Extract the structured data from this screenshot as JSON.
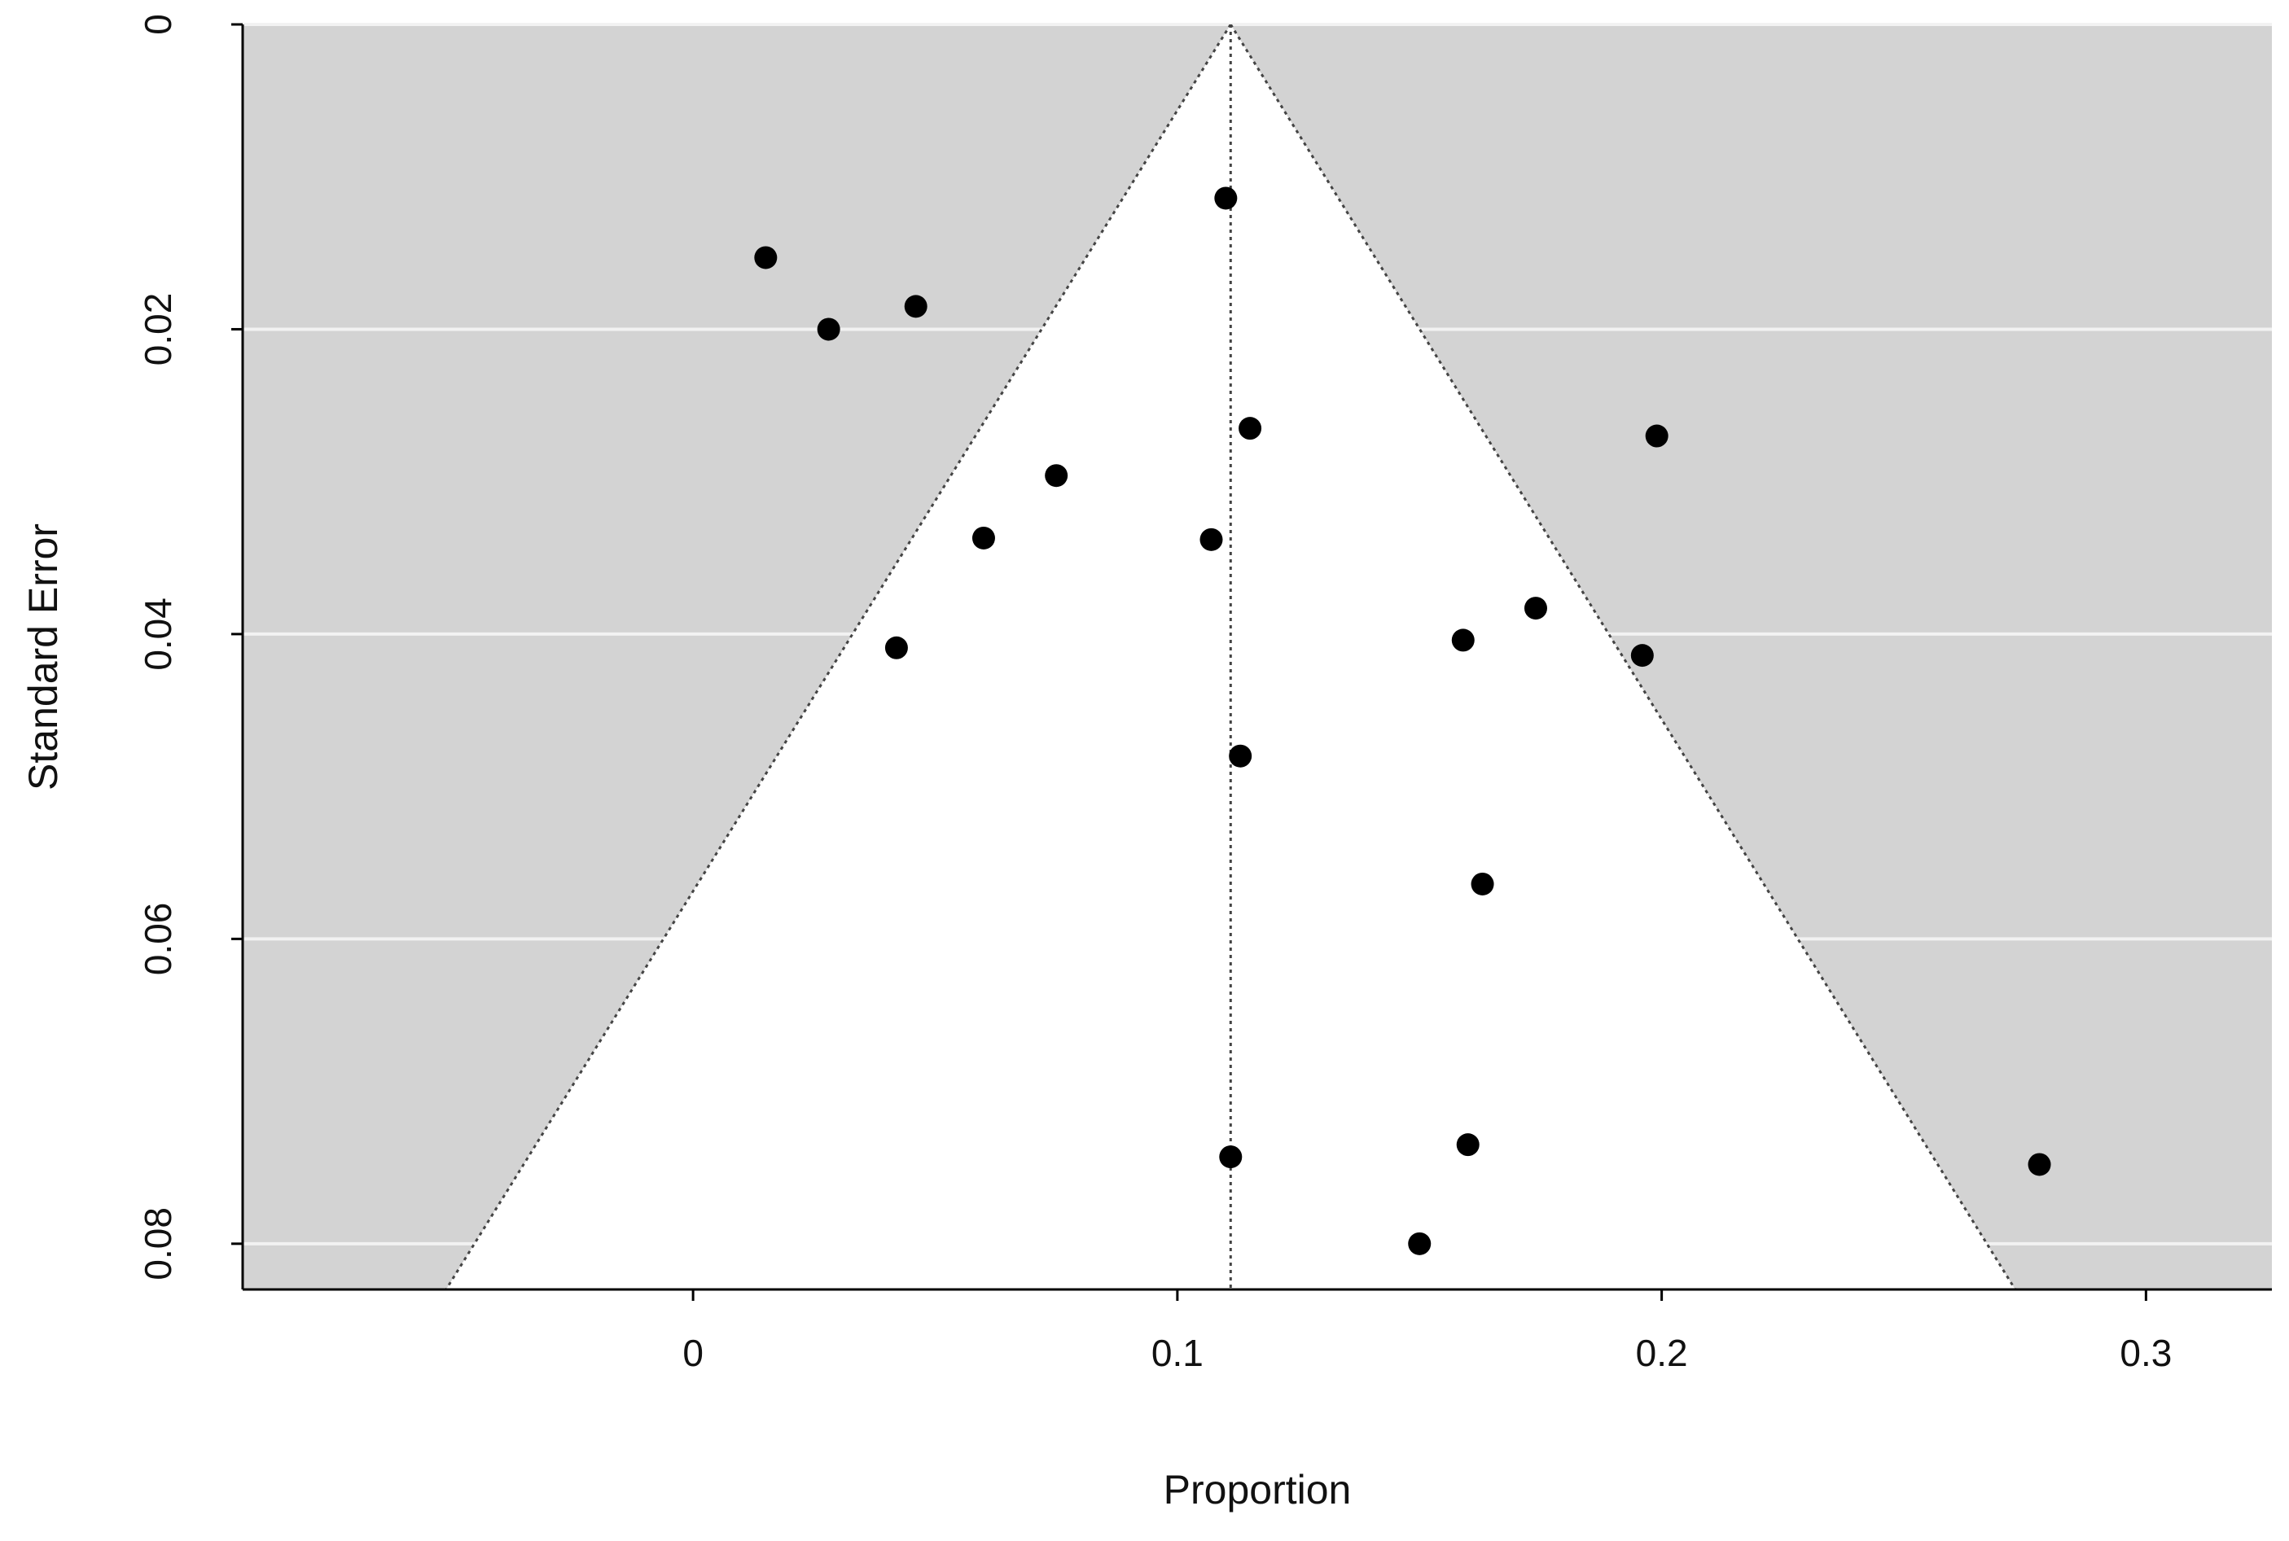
{
  "chart_data": {
    "type": "scatter",
    "subtype": "funnel",
    "title": "",
    "xlabel": "Proportion",
    "ylabel": "Standard Error",
    "xlim": [
      -0.093,
      0.326
    ],
    "ylim": [
      0,
      0.083
    ],
    "y_reversed": true,
    "x_ticks": [
      0,
      0.1,
      0.2,
      0.3
    ],
    "x_tick_labels": [
      "0",
      "0.1",
      "0.2",
      "0.3"
    ],
    "y_ticks": [
      0,
      0.02,
      0.04,
      0.06,
      0.08
    ],
    "y_tick_labels": [
      "0",
      "0.02",
      "0.04",
      "0.06",
      "0.08"
    ],
    "grid": "horizontal",
    "legend": "none",
    "pooled_estimate": 0.111,
    "funnel_limits": {
      "apex": [
        0.111,
        0
      ],
      "left_base": [
        -0.051,
        0.083
      ],
      "right_base": [
        0.273,
        0.083
      ]
    },
    "points": [
      {
        "x": 0.11,
        "y": 0.0114
      },
      {
        "x": 0.015,
        "y": 0.0153
      },
      {
        "x": 0.046,
        "y": 0.0185
      },
      {
        "x": 0.028,
        "y": 0.02
      },
      {
        "x": 0.115,
        "y": 0.0265
      },
      {
        "x": 0.199,
        "y": 0.027
      },
      {
        "x": 0.075,
        "y": 0.0296
      },
      {
        "x": 0.06,
        "y": 0.0337
      },
      {
        "x": 0.107,
        "y": 0.0338
      },
      {
        "x": 0.174,
        "y": 0.0383
      },
      {
        "x": 0.159,
        "y": 0.0404
      },
      {
        "x": 0.042,
        "y": 0.0409
      },
      {
        "x": 0.196,
        "y": 0.0414
      },
      {
        "x": 0.113,
        "y": 0.048
      },
      {
        "x": 0.163,
        "y": 0.0564
      },
      {
        "x": 0.16,
        "y": 0.0735
      },
      {
        "x": 0.111,
        "y": 0.0743
      },
      {
        "x": 0.278,
        "y": 0.0748
      },
      {
        "x": 0.15,
        "y": 0.08
      }
    ],
    "colors": {
      "plot_background": "#d3d3d3",
      "funnel_fill": "#ffffff",
      "gridline": "#f2f2f2",
      "points": "#000000",
      "reference_lines": "#444444",
      "axis": "#000000"
    }
  }
}
